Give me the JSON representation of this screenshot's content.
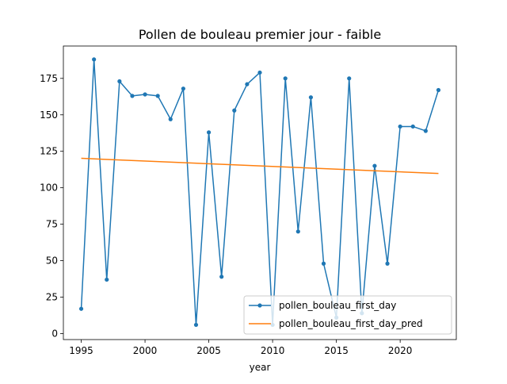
{
  "chart_data": {
    "type": "line",
    "title": "Pollen de bouleau premier jour - faible",
    "xlabel": "year",
    "ylabel": "",
    "xlim": [
      1993.6,
      2024.4
    ],
    "ylim": [
      -4.1,
      197.2
    ],
    "xticks": [
      1995,
      2000,
      2005,
      2010,
      2015,
      2020
    ],
    "yticks": [
      0,
      25,
      50,
      75,
      100,
      125,
      150,
      175
    ],
    "legend_position": "lower right",
    "grid": false,
    "series": [
      {
        "name": "pollen_bouleau_first_day",
        "color": "#1f77b4",
        "marker": "dot",
        "x": [
          1995,
          1996,
          1997,
          1998,
          1999,
          2000,
          2001,
          2002,
          2003,
          2004,
          2005,
          2006,
          2007,
          2008,
          2009,
          2010,
          2011,
          2012,
          2013,
          2014,
          2015,
          2016,
          2017,
          2018,
          2019,
          2020,
          2021,
          2022,
          2023
        ],
        "y": [
          17,
          188,
          37,
          173,
          163,
          164,
          163,
          147,
          168,
          6,
          138,
          39,
          153,
          171,
          179,
          6,
          175,
          70,
          162,
          48,
          11,
          175,
          14,
          115,
          48,
          142,
          142,
          139,
          167
        ]
      },
      {
        "name": "pollen_bouleau_first_day_pred",
        "color": "#ff7f0e",
        "marker": "none",
        "x": [
          1995,
          2023
        ],
        "y": [
          120.2,
          109.8
        ]
      }
    ]
  }
}
